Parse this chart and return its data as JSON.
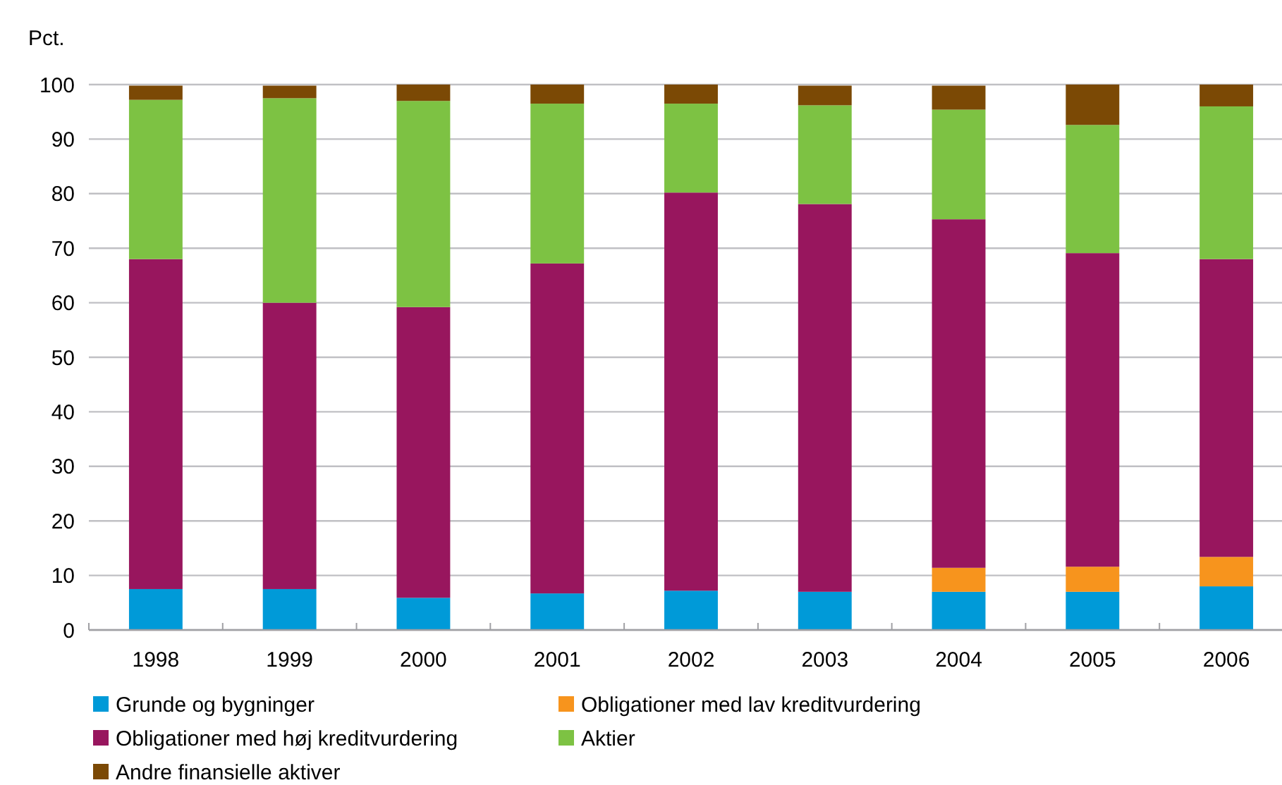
{
  "chart_data": {
    "type": "bar",
    "stacked": true,
    "ylabel": "Pct.",
    "categories": [
      "1998",
      "1999",
      "2000",
      "2001",
      "2002",
      "2003",
      "2004",
      "2005",
      "2006"
    ],
    "series": [
      {
        "name": "Grunde og bygninger",
        "color": "#009ad8",
        "values": [
          7.5,
          7.5,
          5.9,
          6.7,
          7.2,
          7.0,
          7.0,
          7.0,
          8.0
        ]
      },
      {
        "name": "Obligationer med lav kreditvurdering",
        "color": "#f7941d",
        "values": [
          0,
          0,
          0,
          0,
          0,
          0,
          4.4,
          4.6,
          5.4
        ]
      },
      {
        "name": "Obligationer med høj kreditvurdering",
        "color": "#98165e",
        "values": [
          60.5,
          52.5,
          53.3,
          60.5,
          73.0,
          71.1,
          63.9,
          57.5,
          54.6
        ]
      },
      {
        "name": "Aktier",
        "color": "#7dc243",
        "values": [
          29.2,
          37.5,
          37.8,
          29.3,
          16.3,
          18.1,
          20.1,
          23.5,
          28.0
        ]
      },
      {
        "name": "Andre finansielle aktiver",
        "color": "#7b4905",
        "values": [
          2.6,
          2.3,
          3.0,
          3.5,
          3.5,
          3.6,
          4.4,
          7.4,
          4.0
        ]
      }
    ],
    "ylim": [
      0,
      100
    ],
    "yticks": [
      0,
      10,
      20,
      30,
      40,
      50,
      60,
      70,
      80,
      90,
      100
    ],
    "grid": "y",
    "legend": "bottom"
  }
}
